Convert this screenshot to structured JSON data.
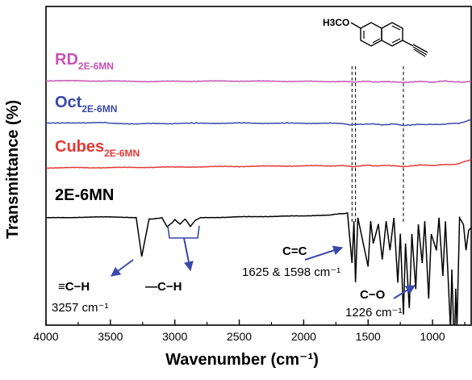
{
  "chart_data": {
    "type": "line",
    "xlabel": "Wavenumber (cm⁻¹)",
    "ylabel": "Transmittance (%)",
    "xlim": [
      4000,
      700
    ],
    "x_reversed": true,
    "x_ticks": [
      4000,
      3500,
      3000,
      2500,
      2000,
      1500,
      1000
    ],
    "grid": false,
    "legend": "none; series labels printed above each trace",
    "series": [
      {
        "name": "RD",
        "name_subscript": "2E-6MN",
        "color": "#c652b5",
        "x": [
          4000,
          3500,
          3300,
          3000,
          2500,
          2000,
          1700,
          1625,
          1598,
          1500,
          1400,
          1300,
          1226,
          1100,
          1000,
          900,
          760,
          700
        ],
        "y": [
          100,
          99.8,
          99.5,
          99.7,
          99.8,
          99.6,
          99.5,
          99.2,
          99.3,
          99.6,
          99.3,
          99.5,
          99.0,
          99.5,
          99.2,
          99.8,
          99.0,
          100
        ]
      },
      {
        "name": "Oct",
        "name_subscript": "2E-6MN",
        "color": "#3949ab",
        "x": [
          4000,
          3800,
          3600,
          3500,
          3300,
          3000,
          2500,
          2000,
          1700,
          1625,
          1598,
          1500,
          1400,
          1300,
          1226,
          1100,
          1000,
          900,
          800,
          700
        ],
        "y": [
          100,
          100.3,
          100.6,
          100.2,
          99.8,
          100,
          100.2,
          100.1,
          100.0,
          99.2,
          99.4,
          99.8,
          99.3,
          99.6,
          98.8,
          99.6,
          99.3,
          99.7,
          100.1,
          102.0
        ]
      },
      {
        "name": "Cubes",
        "name_subscript": "2E-6MN",
        "color": "#e53935",
        "x": [
          4000,
          3500,
          3000,
          2500,
          2000,
          1700,
          1625,
          1598,
          1500,
          1400,
          1300,
          1226,
          1100,
          1000,
          900,
          800,
          700
        ],
        "y": [
          100,
          100.1,
          100.3,
          100.6,
          100.8,
          100.9,
          100.4,
          100.6,
          101.0,
          100.8,
          101.0,
          100.5,
          101.1,
          101.0,
          101.3,
          101.6,
          103.5
        ]
      },
      {
        "name": "2E-6MN",
        "color": "#000000",
        "x": [
          4000,
          3500,
          3300,
          3257,
          3200,
          3100,
          3060,
          3020,
          3000,
          2960,
          2920,
          2880,
          2840,
          2800,
          2500,
          2000,
          1800,
          1700,
          1660,
          1625,
          1610,
          1598,
          1580,
          1500,
          1480,
          1460,
          1420,
          1390,
          1360,
          1330,
          1300,
          1270,
          1250,
          1226,
          1210,
          1180,
          1160,
          1130,
          1110,
          1080,
          1060,
          1030,
          1010,
          970,
          950,
          920,
          900,
          860,
          850,
          830,
          820,
          810,
          790,
          760,
          740,
          720,
          700
        ],
        "y": [
          100,
          100.3,
          100.1,
          88,
          99.6,
          100,
          97.2,
          98.6,
          99.5,
          98.0,
          99.6,
          97.4,
          99.3,
          100,
          100.3,
          100.6,
          100.9,
          101.3,
          101.5,
          86,
          99,
          80,
          100,
          85,
          99,
          92,
          98,
          87,
          99,
          90,
          100,
          80,
          95,
          70,
          92,
          72,
          95,
          78,
          98,
          86,
          99,
          75,
          95,
          90,
          100,
          82,
          99,
          65,
          84,
          58,
          78,
          66,
          100,
          98,
          90,
          96,
          97
        ]
      }
    ],
    "annotations": [
      {
        "label": "≡C−H",
        "sub_label": "3257 cm⁻¹",
        "x": 3257
      },
      {
        "label": "—C−H",
        "x_range": [
          3060,
          2840
        ]
      },
      {
        "label": "C=C",
        "sub_label": "1625 & 1598 cm⁻¹",
        "x": [
          1625,
          1598
        ]
      },
      {
        "label": "C−O",
        "sub_label": "1226 cm⁻¹",
        "x": 1226
      }
    ],
    "inset": {
      "label": "H3CO",
      "description": "2-ethynyl-6-methoxynaphthalene structure"
    }
  },
  "texts": {
    "ann_ch_triple": "≡C−H",
    "ann_ch_triple_value": "3257 cm⁻¹",
    "ann_ch_alkyl": "—C−H",
    "ann_cc": "C=C",
    "ann_cc_value": "1625 & 1598 cm⁻¹",
    "ann_co": "C−O",
    "ann_co_value": "1226 cm⁻¹",
    "mol_label": "H3CO"
  }
}
